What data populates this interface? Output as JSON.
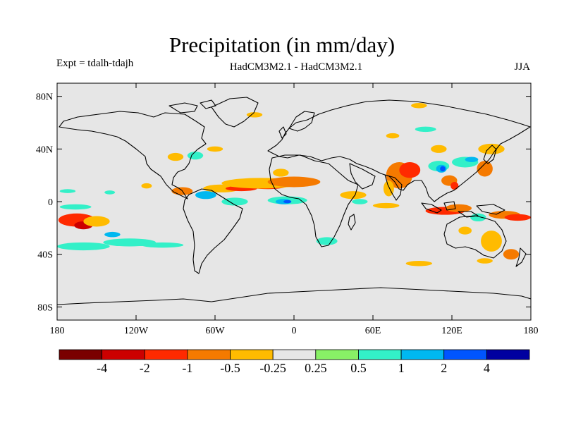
{
  "title": "Precipitation (in mm/day)",
  "experiment_label": "Expt = tdalh-tdajh",
  "comparison_label": "HadCM3M2.1 - HadCM3M2.1",
  "season_label": "JJA",
  "map": {
    "lon_range": [
      -180,
      180
    ],
    "lat_range": [
      -90,
      90
    ],
    "lat_ticks": [
      {
        "value": 80,
        "label": "80N"
      },
      {
        "value": 40,
        "label": "40N"
      },
      {
        "value": 0,
        "label": "0"
      },
      {
        "value": -40,
        "label": "40S"
      },
      {
        "value": -80,
        "label": "80S"
      }
    ],
    "lon_ticks": [
      {
        "value": -180,
        "label": "180"
      },
      {
        "value": -120,
        "label": "120W"
      },
      {
        "value": -60,
        "label": "60W"
      },
      {
        "value": 0,
        "label": "0"
      },
      {
        "value": 60,
        "label": "60E"
      },
      {
        "value": 120,
        "label": "120E"
      },
      {
        "value": 180,
        "label": "180"
      }
    ],
    "background_color": "#e6e6e6"
  },
  "colorbar": {
    "colors": [
      "#7a0000",
      "#cc0000",
      "#ff2a00",
      "#f57a00",
      "#ffbb00",
      "#e6e6e6",
      "#88f066",
      "#33f0c8",
      "#00b8f0",
      "#0055ff",
      "#0000a0"
    ],
    "labels": [
      "-4",
      "-2",
      "-1",
      "-0.5",
      "-0.25",
      "0.25",
      "0.5",
      "1",
      "2",
      "4"
    ]
  },
  "anomaly_regions": [
    {
      "lon": -165,
      "lat": -14,
      "rx": 14,
      "ry": 5,
      "level": "-1"
    },
    {
      "lon": -160,
      "lat": -18,
      "rx": 7,
      "ry": 3,
      "level": "-2"
    },
    {
      "lon": -150,
      "lat": -15,
      "rx": 10,
      "ry": 4,
      "level": "-0.25"
    },
    {
      "lon": -160,
      "lat": -34,
      "rx": 20,
      "ry": 3,
      "level": "0.5"
    },
    {
      "lon": -125,
      "lat": -31,
      "rx": 20,
      "ry": 3,
      "level": "0.5"
    },
    {
      "lon": -100,
      "lat": -33,
      "rx": 16,
      "ry": 2,
      "level": "0.5"
    },
    {
      "lon": -138,
      "lat": -25,
      "rx": 6,
      "ry": 2,
      "level": "1"
    },
    {
      "lon": -166,
      "lat": -4,
      "rx": 12,
      "ry": 2,
      "level": "0.5"
    },
    {
      "lon": -172,
      "lat": 8,
      "rx": 6,
      "ry": 1.5,
      "level": "0.5"
    },
    {
      "lon": -140,
      "lat": 7,
      "rx": 4,
      "ry": 1.5,
      "level": "0.5"
    },
    {
      "lon": -85,
      "lat": 8,
      "rx": 8,
      "ry": 3,
      "level": "-0.5"
    },
    {
      "lon": -112,
      "lat": 12,
      "rx": 4,
      "ry": 2,
      "level": "-0.25"
    },
    {
      "lon": -55,
      "lat": 10,
      "rx": 14,
      "ry": 3,
      "level": "-0.25"
    },
    {
      "lon": -40,
      "lat": 10,
      "rx": 12,
      "ry": 2,
      "level": "-1"
    },
    {
      "lon": -20,
      "lat": 12,
      "rx": 15,
      "ry": 2.5,
      "level": "-1"
    },
    {
      "lon": -25,
      "lat": 14,
      "rx": 30,
      "ry": 4,
      "level": "-0.25"
    },
    {
      "lon": 0,
      "lat": 15,
      "rx": 20,
      "ry": 4,
      "level": "-0.5"
    },
    {
      "lon": -10,
      "lat": 22,
      "rx": 6,
      "ry": 3,
      "level": "-0.25"
    },
    {
      "lon": -67,
      "lat": 5,
      "rx": 8,
      "ry": 3,
      "level": "1"
    },
    {
      "lon": -45,
      "lat": 0,
      "rx": 10,
      "ry": 3,
      "level": "0.5"
    },
    {
      "lon": -5,
      "lat": 1,
      "rx": 15,
      "ry": 3,
      "level": "0.5"
    },
    {
      "lon": -8,
      "lat": 0,
      "rx": 6,
      "ry": 2,
      "level": "1"
    },
    {
      "lon": -5,
      "lat": 0,
      "rx": 3,
      "ry": 1.2,
      "level": "2"
    },
    {
      "lon": 45,
      "lat": 5,
      "rx": 10,
      "ry": 3,
      "level": "-0.25"
    },
    {
      "lon": 50,
      "lat": 0,
      "rx": 6,
      "ry": 2,
      "level": "0.5"
    },
    {
      "lon": 80,
      "lat": 20,
      "rx": 10,
      "ry": 10,
      "level": "-0.5"
    },
    {
      "lon": 88,
      "lat": 24,
      "rx": 8,
      "ry": 6,
      "level": "-1"
    },
    {
      "lon": 72,
      "lat": 10,
      "rx": 4,
      "ry": 6,
      "level": "-0.25"
    },
    {
      "lon": 70,
      "lat": -3,
      "rx": 10,
      "ry": 2,
      "level": "-0.25"
    },
    {
      "lon": 110,
      "lat": 27,
      "rx": 8,
      "ry": 4,
      "level": "0.5"
    },
    {
      "lon": 112,
      "lat": 25,
      "rx": 4,
      "ry": 3,
      "level": "1"
    },
    {
      "lon": 113,
      "lat": 25,
      "rx": 2,
      "ry": 2,
      "level": "2"
    },
    {
      "lon": 130,
      "lat": 30,
      "rx": 10,
      "ry": 4,
      "level": "0.5"
    },
    {
      "lon": 135,
      "lat": 32,
      "rx": 5,
      "ry": 2,
      "level": "1"
    },
    {
      "lon": 118,
      "lat": 16,
      "rx": 6,
      "ry": 4,
      "level": "-0.5"
    },
    {
      "lon": 122,
      "lat": 12,
      "rx": 3,
      "ry": 3,
      "level": "-1"
    },
    {
      "lon": 110,
      "lat": 40,
      "rx": 6,
      "ry": 3,
      "level": "-0.25"
    },
    {
      "lon": 145,
      "lat": 25,
      "rx": 6,
      "ry": 6,
      "level": "-0.5"
    },
    {
      "lon": 150,
      "lat": 40,
      "rx": 10,
      "ry": 4,
      "level": "-0.25"
    },
    {
      "lon": 115,
      "lat": -7,
      "rx": 15,
      "ry": 3,
      "level": "-1"
    },
    {
      "lon": 125,
      "lat": -5,
      "rx": 10,
      "ry": 3,
      "level": "-0.5"
    },
    {
      "lon": 160,
      "lat": -10,
      "rx": 12,
      "ry": 3,
      "level": "-0.5"
    },
    {
      "lon": 170,
      "lat": -12,
      "rx": 10,
      "ry": 2.5,
      "level": "-1"
    },
    {
      "lon": 150,
      "lat": -30,
      "rx": 8,
      "ry": 8,
      "level": "-0.25"
    },
    {
      "lon": 165,
      "lat": -40,
      "rx": 6,
      "ry": 4,
      "level": "-0.5"
    },
    {
      "lon": 140,
      "lat": -12,
      "rx": 6,
      "ry": 3,
      "level": "0.5"
    },
    {
      "lon": 130,
      "lat": -22,
      "rx": 5,
      "ry": 3,
      "level": "-0.25"
    },
    {
      "lon": 145,
      "lat": -45,
      "rx": 6,
      "ry": 2,
      "level": "-0.25"
    },
    {
      "lon": 95,
      "lat": -47,
      "rx": 10,
      "ry": 2,
      "level": "-0.25"
    },
    {
      "lon": 25,
      "lat": -30,
      "rx": 8,
      "ry": 3,
      "level": "0.5"
    },
    {
      "lon": -60,
      "lat": 40,
      "rx": 6,
      "ry": 2,
      "level": "-0.25"
    },
    {
      "lon": -90,
      "lat": 34,
      "rx": 6,
      "ry": 3,
      "level": "-0.25"
    },
    {
      "lon": -75,
      "lat": 35,
      "rx": 6,
      "ry": 3,
      "level": "0.5"
    },
    {
      "lon": 75,
      "lat": 50,
      "rx": 5,
      "ry": 2,
      "level": "-0.25"
    },
    {
      "lon": 100,
      "lat": 55,
      "rx": 8,
      "ry": 2,
      "level": "0.5"
    },
    {
      "lon": -30,
      "lat": 66,
      "rx": 6,
      "ry": 2,
      "level": "-0.25"
    },
    {
      "lon": 95,
      "lat": 73,
      "rx": 6,
      "ry": 2,
      "level": "-0.25"
    }
  ]
}
